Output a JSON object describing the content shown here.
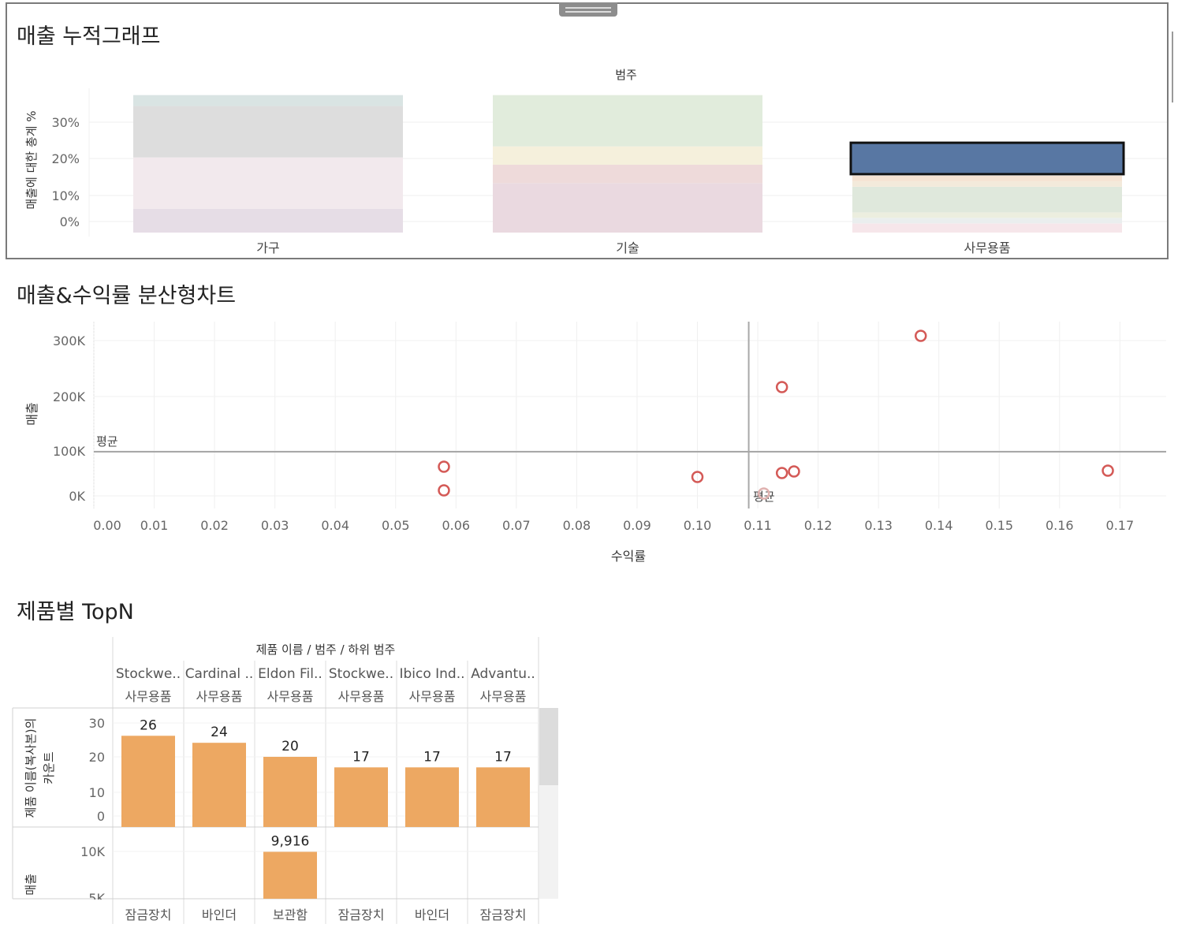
{
  "stacked_title": "매출 누적그래프",
  "scatter_title": "매출&수익률 분산형차트",
  "topn_title": "제품별 TopN",
  "chart_data": [
    {
      "type": "bar",
      "stacked": true,
      "column_header": "범주",
      "ylabel": "매출에 대한 총계 %",
      "y_ticks": [
        "30%",
        "20%",
        "10%",
        "0%"
      ],
      "categories": [
        "가구",
        "기술",
        "사무용품"
      ],
      "ylim": [
        0,
        38
      ],
      "segments": [
        [
          {
            "value": 6.5,
            "color": "#e6dde6"
          },
          {
            "value": 14,
            "color": "#f2e9ed"
          },
          {
            "value": 14,
            "color": "#dddddd"
          },
          {
            "value": 3,
            "color": "#d9e4e3"
          }
        ],
        [
          {
            "value": 13.5,
            "color": "#ead9e0"
          },
          {
            "value": 5,
            "color": "#eedada"
          },
          {
            "value": 5,
            "color": "#f5f0dc"
          },
          {
            "value": 14,
            "color": "#e1ecdc"
          }
        ],
        [
          {
            "value": 2.5,
            "color": "#f6e6ea"
          },
          {
            "value": 1.5,
            "color": "#eaeeee"
          },
          {
            "value": 1.5,
            "color": "#eceedf"
          },
          {
            "value": 7,
            "color": "#dfe8dc"
          },
          {
            "value": 1.5,
            "color": "#f3eadb"
          },
          {
            "value": 1.5,
            "color": "#f5e3d3"
          },
          {
            "value": 9,
            "color": "#5877a3",
            "highlight": true
          }
        ]
      ],
      "highlight_color": "#5877a3",
      "grid": true
    },
    {
      "type": "scatter",
      "xlabel": "수익률",
      "ylabel": "매출",
      "xlim": [
        0,
        0.177
      ],
      "ylim": [
        -18000,
        335000
      ],
      "x_ticks": [
        "0.00",
        "0.01",
        "0.02",
        "0.03",
        "0.04",
        "0.05",
        "0.06",
        "0.07",
        "0.08",
        "0.09",
        "0.10",
        "0.11",
        "0.12",
        "0.13",
        "0.14",
        "0.15",
        "0.16",
        "0.17"
      ],
      "y_ticks": [
        {
          "label": "300K",
          "value": 300000
        },
        {
          "label": "200K",
          "value": 200000
        },
        {
          "label": "100K",
          "value": 100000
        },
        {
          "label": "0K",
          "value": 0
        }
      ],
      "points": [
        {
          "x": 0.137,
          "y": 307000
        },
        {
          "x": 0.114,
          "y": 215000
        },
        {
          "x": 0.058,
          "y": 70000
        },
        {
          "x": 0.058,
          "y": 28000
        },
        {
          "x": 0.1,
          "y": 52000
        },
        {
          "x": 0.114,
          "y": 59000
        },
        {
          "x": 0.116,
          "y": 62000
        },
        {
          "x": 0.168,
          "y": 63000
        },
        {
          "x": 0.111,
          "y": 33000,
          "faded": true
        }
      ],
      "reference_lines": {
        "avg_y": 100000,
        "avg_x": 0.1085,
        "label": "평균"
      },
      "point_color": "#d45a57",
      "grid": true
    },
    {
      "type": "bar",
      "header": "제품 이름 / 범주 / 하위 범주",
      "products": [
        "Stockwe..",
        "Cardinal ..",
        "Eldon Fil..",
        "Stockwe..",
        "Ibico Ind..",
        "Advantu.."
      ],
      "categories": [
        "사무용품",
        "사무용품",
        "사무용품",
        "사무용품",
        "사무용품",
        "사무용품"
      ],
      "subcategories": [
        "잠금장치",
        "바인더",
        "보관함",
        "잠금장치",
        "바인더",
        "잠금장치"
      ],
      "series": [
        {
          "axis_label": "제품 이름(복사본)의 카운트",
          "values": [
            26,
            24,
            20,
            17,
            17,
            17
          ],
          "labels": [
            "26",
            "24",
            "20",
            "17",
            "17",
            "17"
          ],
          "ylim": [
            0,
            33
          ],
          "y_ticks": [
            "30",
            "20",
            "10",
            "0"
          ]
        },
        {
          "axis_label": "매출",
          "values": [
            null,
            null,
            9916,
            null,
            null,
            null
          ],
          "labels": [
            "",
            "",
            "9,916",
            "",
            "",
            ""
          ],
          "y_ticks": [
            "10K",
            "5K"
          ]
        }
      ],
      "bar_color": "#eda862"
    }
  ]
}
